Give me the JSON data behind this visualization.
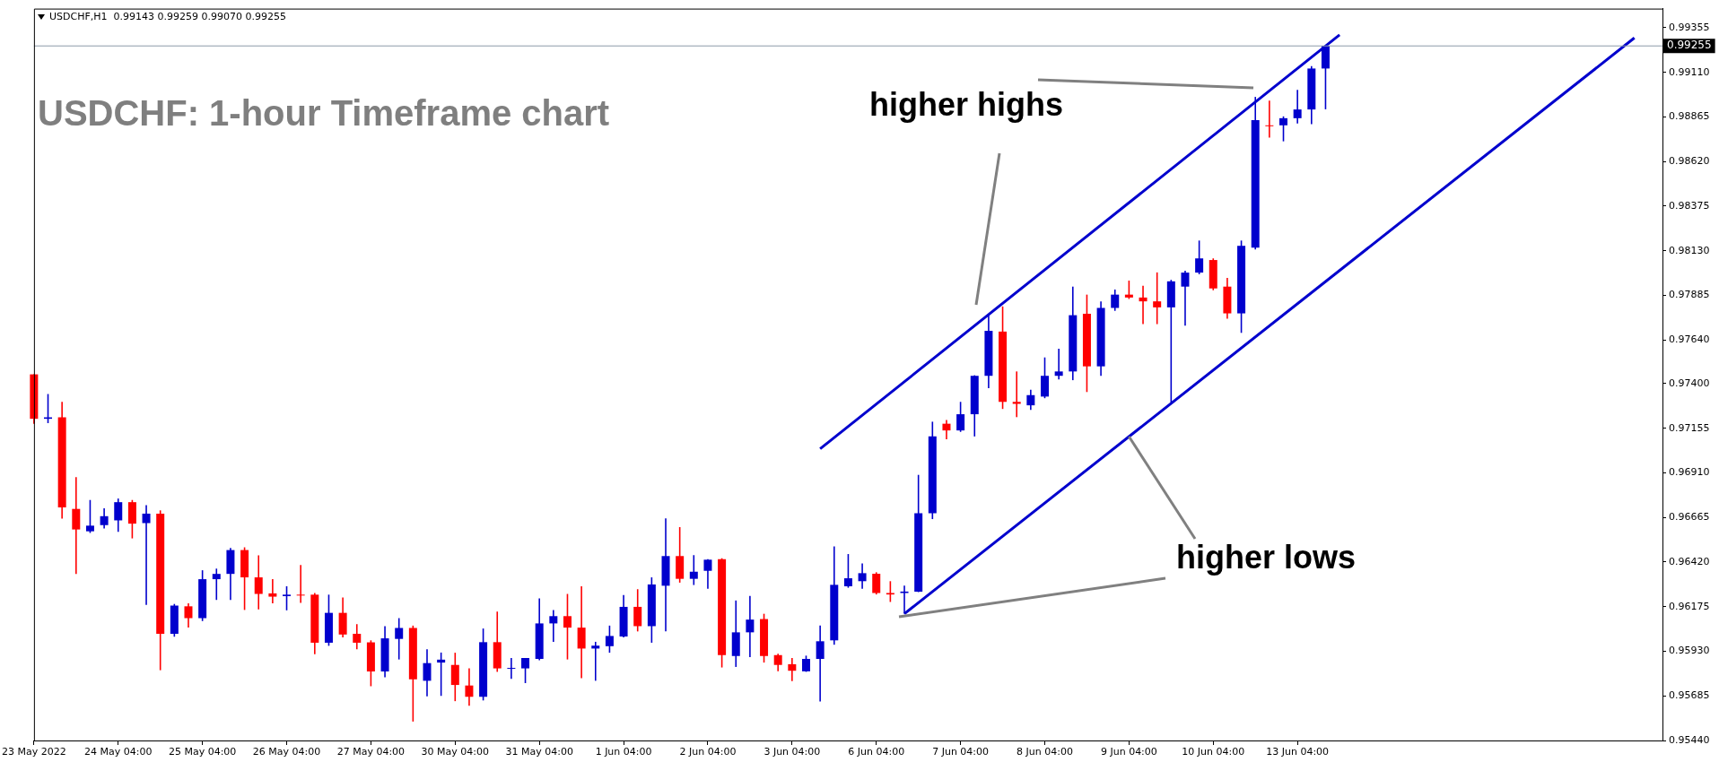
{
  "chart_data": {
    "type": "candlestick",
    "title": "USDCHF: 1-hour Timeframe chart",
    "subtitle": "USDCHF,H1  0.99143 0.99259 0.99070 0.99255",
    "categories": [
      "23 May 2022",
      null,
      null,
      null,
      null,
      null,
      "24 May 04:00",
      null,
      null,
      null,
      null,
      null,
      "25 May 04:00",
      null,
      null,
      null,
      null,
      null,
      "26 May 04:00",
      null,
      null,
      null,
      null,
      null,
      "27 May 04:00",
      null,
      null,
      null,
      null,
      null,
      "30 May 04:00",
      null,
      null,
      null,
      null,
      null,
      "31 May 04:00",
      null,
      null,
      null,
      null,
      null,
      "1 Jun 04:00",
      null,
      null,
      null,
      null,
      null,
      "2 Jun 04:00",
      null,
      null,
      null,
      null,
      null,
      "3 Jun 04:00",
      null,
      null,
      null,
      null,
      null,
      "6 Jun 04:00",
      null,
      null,
      null,
      null,
      null,
      "7 Jun 04:00",
      null,
      null,
      null,
      null,
      null,
      "8 Jun 04:00",
      null,
      null,
      null,
      null,
      null,
      "9 Jun 04:00",
      null,
      null,
      null,
      null,
      null,
      "10 Jun 04:00",
      null,
      null,
      null,
      null,
      null,
      "13 Jun 04:00",
      null,
      null,
      null,
      null,
      null,
      null,
      null,
      null,
      null,
      null,
      null,
      null,
      null,
      null,
      null,
      null,
      null,
      null,
      null,
      null,
      null,
      null,
      null,
      null,
      null,
      null
    ],
    "ohlc": [
      [
        0.97451,
        0.97451,
        0.9718,
        0.97207
      ],
      [
        0.97207,
        0.97343,
        0.97183,
        0.97215
      ],
      [
        0.97215,
        0.973,
        0.96659,
        0.9672
      ],
      [
        0.96712,
        0.96886,
        0.96355,
        0.96599
      ],
      [
        0.96589,
        0.96761,
        0.9658,
        0.9662
      ],
      [
        0.96623,
        0.96715,
        0.96605,
        0.96672
      ],
      [
        0.96649,
        0.96769,
        0.96586,
        0.96749
      ],
      [
        0.96749,
        0.96761,
        0.9655,
        0.96631
      ],
      [
        0.96634,
        0.96732,
        0.96185,
        0.96686
      ],
      [
        0.96686,
        0.96704,
        0.95826,
        0.96026
      ],
      [
        0.96026,
        0.9619,
        0.9601,
        0.96181
      ],
      [
        0.96177,
        0.96193,
        0.9606,
        0.96112
      ],
      [
        0.96112,
        0.96375,
        0.96096,
        0.96326
      ],
      [
        0.96326,
        0.96384,
        0.96212,
        0.96355
      ],
      [
        0.96355,
        0.96498,
        0.96212,
        0.96486
      ],
      [
        0.96486,
        0.96501,
        0.96157,
        0.96336
      ],
      [
        0.96336,
        0.96457,
        0.9616,
        0.96245
      ],
      [
        0.96248,
        0.96326,
        0.96193,
        0.9623
      ],
      [
        0.96233,
        0.96287,
        0.96155,
        0.96241
      ],
      [
        0.96241,
        0.96404,
        0.96196,
        0.96241
      ],
      [
        0.96241,
        0.9625,
        0.95914,
        0.95977
      ],
      [
        0.95977,
        0.96241,
        0.9596,
        0.96141
      ],
      [
        0.96141,
        0.96225,
        0.96006,
        0.96022
      ],
      [
        0.96026,
        0.96079,
        0.95941,
        0.95977
      ],
      [
        0.95979,
        0.9599,
        0.95738,
        0.95819
      ],
      [
        0.95819,
        0.96068,
        0.95787,
        0.96001
      ],
      [
        0.95998,
        0.96112,
        0.95885,
        0.96058
      ],
      [
        0.96058,
        0.96071,
        0.95544,
        0.95776
      ],
      [
        0.95768,
        0.95941,
        0.95682,
        0.95865
      ],
      [
        0.95868,
        0.95923,
        0.95685,
        0.95884
      ],
      [
        0.95855,
        0.95922,
        0.95656,
        0.95745
      ],
      [
        0.95742,
        0.95836,
        0.95631,
        0.9568
      ],
      [
        0.9568,
        0.96055,
        0.9566,
        0.9598
      ],
      [
        0.9598,
        0.96148,
        0.95817,
        0.95836
      ],
      [
        0.95836,
        0.95893,
        0.95778,
        0.95839
      ],
      [
        0.95836,
        0.95893,
        0.95755,
        0.95893
      ],
      [
        0.95888,
        0.96221,
        0.95881,
        0.96083
      ],
      [
        0.96083,
        0.96156,
        0.95982,
        0.96123
      ],
      [
        0.96123,
        0.96245,
        0.95885,
        0.9606
      ],
      [
        0.9606,
        0.96287,
        0.95782,
        0.95945
      ],
      [
        0.95945,
        0.95982,
        0.95768,
        0.95961
      ],
      [
        0.95958,
        0.96071,
        0.95922,
        0.96014
      ],
      [
        0.96011,
        0.96239,
        0.96006,
        0.96174
      ],
      [
        0.96174,
        0.96271,
        0.96039,
        0.96068
      ],
      [
        0.96068,
        0.96336,
        0.95977,
        0.96297
      ],
      [
        0.9629,
        0.9666,
        0.96039,
        0.96453
      ],
      [
        0.96453,
        0.96612,
        0.96307,
        0.96328
      ],
      [
        0.96328,
        0.96458,
        0.96294,
        0.96367
      ],
      [
        0.96372,
        0.96436,
        0.96274,
        0.96433
      ],
      [
        0.96436,
        0.96441,
        0.95841,
        0.95909
      ],
      [
        0.95904,
        0.96209,
        0.95844,
        0.96034
      ],
      [
        0.96034,
        0.96234,
        0.95898,
        0.96104
      ],
      [
        0.96107,
        0.96136,
        0.95868,
        0.95904
      ],
      [
        0.95909,
        0.95917,
        0.9582,
        0.95855
      ],
      [
        0.95859,
        0.95893,
        0.95766,
        0.95823
      ],
      [
        0.9582,
        0.95906,
        0.95817,
        0.95888
      ],
      [
        0.95888,
        0.96071,
        0.95654,
        0.95985
      ],
      [
        0.9599,
        0.96506,
        0.95966,
        0.96295
      ],
      [
        0.96287,
        0.96464,
        0.96279,
        0.96331
      ],
      [
        0.96315,
        0.96412,
        0.96274,
        0.96359
      ],
      [
        0.96356,
        0.96364,
        0.96242,
        0.9625
      ],
      [
        0.9625,
        0.96315,
        0.96201,
        0.96242
      ],
      [
        0.9625,
        0.96291,
        0.96137,
        0.96258
      ],
      [
        0.96258,
        0.96899,
        0.96255,
        0.96688
      ],
      [
        0.96688,
        0.97191,
        0.96656,
        0.9711
      ],
      [
        0.9718,
        0.972,
        0.97094,
        0.97143
      ],
      [
        0.97143,
        0.973,
        0.97135,
        0.97232
      ],
      [
        0.97232,
        0.97446,
        0.9711,
        0.97443
      ],
      [
        0.97443,
        0.97784,
        0.97375,
        0.9769
      ],
      [
        0.97686,
        0.97824,
        0.97261,
        0.973
      ],
      [
        0.973,
        0.97467,
        0.97216,
        0.97289
      ],
      [
        0.97281,
        0.97367,
        0.97256,
        0.97337
      ],
      [
        0.97329,
        0.97544,
        0.9732,
        0.97443
      ],
      [
        0.97443,
        0.97592,
        0.97423,
        0.97467
      ],
      [
        0.97467,
        0.97933,
        0.97419,
        0.97776
      ],
      [
        0.97784,
        0.97889,
        0.97354,
        0.97495
      ],
      [
        0.97495,
        0.97852,
        0.97443,
        0.97816
      ],
      [
        0.97816,
        0.97917,
        0.978,
        0.97889
      ],
      [
        0.97889,
        0.97966,
        0.97865,
        0.97873
      ],
      [
        0.97873,
        0.97938,
        0.97727,
        0.97852
      ],
      [
        0.97852,
        0.98011,
        0.97727,
        0.97819
      ],
      [
        0.97819,
        0.9797,
        0.97297,
        0.97962
      ],
      [
        0.97933,
        0.9802,
        0.97718,
        0.9801
      ],
      [
        0.9801,
        0.98186,
        0.98001,
        0.98088
      ],
      [
        0.98079,
        0.98088,
        0.97913,
        0.97923
      ],
      [
        0.97933,
        0.97981,
        0.97757,
        0.97786
      ],
      [
        0.97786,
        0.98186,
        0.97679,
        0.98157
      ],
      [
        0.98147,
        0.98975,
        0.98137,
        0.98848
      ],
      [
        0.98819,
        0.98955,
        0.98751,
        0.98819
      ],
      [
        0.98819,
        0.98868,
        0.98731,
        0.98858
      ],
      [
        0.98858,
        0.99014,
        0.98829,
        0.98906
      ],
      [
        0.98906,
        0.99144,
        0.98825,
        0.99131
      ],
      [
        0.99131,
        0.99259,
        0.98907,
        0.99255
      ],
      null,
      null,
      null,
      null,
      null,
      null,
      null,
      null,
      null,
      null,
      null,
      null,
      null,
      null,
      null,
      null,
      null,
      null,
      null,
      null,
      null,
      null,
      null,
      null
    ],
    "colors": [
      "#ff0000",
      "#0000cd",
      "#ff0000",
      "#ff0000",
      "#0000cd",
      "#0000cd",
      "#0000cd",
      "#ff0000",
      "#0000cd",
      "#ff0000",
      "#0000cd",
      "#ff0000",
      "#0000cd",
      "#0000cd",
      "#0000cd",
      "#ff0000",
      "#ff0000",
      "#ff0000",
      "#0000cd",
      "#ff0000",
      "#ff0000",
      "#0000cd",
      "#ff0000",
      "#ff0000",
      "#ff0000",
      "#0000cd",
      "#0000cd",
      "#ff0000",
      "#0000cd",
      "#0000cd",
      "#ff0000",
      "#ff0000",
      "#0000cd",
      "#ff0000",
      "#0000cd",
      "#0000cd",
      "#0000cd",
      "#0000cd",
      "#ff0000",
      "#ff0000",
      "#0000cd",
      "#0000cd",
      "#0000cd",
      "#ff0000",
      "#0000cd",
      "#0000cd",
      "#ff0000",
      "#0000cd",
      "#0000cd",
      "#ff0000",
      "#0000cd",
      "#0000cd",
      "#ff0000",
      "#ff0000",
      "#ff0000",
      "#0000cd",
      "#0000cd",
      "#0000cd",
      "#0000cd",
      "#0000cd",
      "#ff0000",
      "#ff0000",
      "#0000cd",
      "#0000cd",
      "#0000cd",
      "#ff0000",
      "#0000cd",
      "#0000cd",
      "#0000cd",
      "#ff0000",
      "#ff0000",
      "#0000cd",
      "#0000cd",
      "#0000cd",
      "#0000cd",
      "#ff0000",
      "#0000cd",
      "#0000cd",
      "#ff0000",
      "#ff0000",
      "#ff0000",
      "#0000cd",
      "#0000cd",
      "#0000cd",
      "#ff0000",
      "#ff0000",
      "#0000cd",
      "#0000cd",
      "#ff0000",
      "#0000cd",
      "#0000cd",
      "#0000cd",
      "#0000cd",
      null,
      null,
      null,
      null,
      null,
      null,
      null,
      null,
      null,
      null,
      null,
      null,
      null,
      null,
      null,
      null,
      null,
      null,
      null,
      null,
      null,
      null,
      null,
      null
    ],
    "series": [
      {
        "type": "line",
        "color": "#0000cd",
        "values": [
          null,
          null,
          null,
          null,
          null,
          null,
          null,
          null,
          null,
          null,
          null,
          null,
          null,
          null,
          null,
          null,
          null,
          null,
          null,
          null,
          null,
          null,
          null,
          null,
          null,
          null,
          null,
          null,
          null,
          null,
          null,
          null,
          null,
          null,
          null,
          null,
          null,
          null,
          null,
          null,
          null,
          null,
          null,
          null,
          null,
          null,
          null,
          null,
          null,
          null,
          null,
          null,
          null,
          null,
          null,
          null,
          0.97042,
          null,
          null,
          null,
          null,
          null,
          null,
          null,
          null,
          null,
          null,
          null,
          null,
          null,
          null,
          null,
          null,
          null,
          null,
          null,
          null,
          null,
          null,
          null,
          null,
          null,
          null,
          null,
          null,
          null,
          null,
          null,
          null,
          null,
          null,
          null,
          null,
          0.99316,
          null,
          null,
          null,
          null,
          null,
          null,
          null,
          null,
          null,
          null,
          null,
          null,
          null,
          null,
          null,
          null,
          null,
          null,
          null,
          null,
          null,
          null,
          null
        ]
      },
      {
        "type": "line",
        "color": "#0000cd",
        "values": [
          null,
          null,
          null,
          null,
          null,
          null,
          null,
          null,
          null,
          null,
          null,
          null,
          null,
          null,
          null,
          null,
          null,
          null,
          null,
          null,
          null,
          null,
          null,
          null,
          null,
          null,
          null,
          null,
          null,
          null,
          null,
          null,
          null,
          null,
          null,
          null,
          null,
          null,
          null,
          null,
          null,
          null,
          null,
          null,
          null,
          null,
          null,
          null,
          null,
          null,
          null,
          null,
          null,
          null,
          null,
          null,
          null,
          null,
          null,
          null,
          null,
          null,
          0.96136,
          null,
          null,
          null,
          null,
          null,
          null,
          null,
          null,
          null,
          null,
          null,
          null,
          null,
          null,
          null,
          null,
          null,
          null,
          null,
          null,
          null,
          null,
          null,
          null,
          null,
          null,
          null,
          null,
          null,
          null,
          null,
          null,
          null,
          null,
          null,
          null,
          null,
          null,
          null,
          null,
          null,
          null,
          null,
          null,
          null,
          null,
          null,
          null,
          null,
          null,
          null,
          0.99299,
          null,
          null
        ]
      }
    ],
    "ylim": [
      0.9544,
      0.9946
    ],
    "yticks": [
      {
        "value": 0.9544,
        "label": "0.95440"
      },
      0.95685,
      {
        "value": 0.9593,
        "label": "0.95930"
      },
      0.96175,
      {
        "value": 0.9642,
        "label": "0.96420"
      },
      0.96665,
      {
        "value": 0.9691,
        "label": "0.96910"
      },
      0.97155,
      {
        "value": 0.974,
        "label": "0.97400"
      },
      {
        "value": 0.9764,
        "label": "0.97640"
      },
      0.97885,
      {
        "value": 0.9813,
        "label": "0.98130"
      },
      0.98375,
      {
        "value": 0.9862,
        "label": "0.98620"
      },
      0.98865,
      {
        "value": 0.9911,
        "label": "0.99110"
      },
      0.99355
    ],
    "ref_lines": [
      {
        "axis": "y",
        "value": 0.99255,
        "label": "0.99255",
        "color": "#8c9aa8"
      }
    ],
    "annotations": [
      "higher highs",
      {
        "text": "higher lows",
        "x": "9 Jun 04:00",
        "y": 0.97109
      }
    ]
  }
}
